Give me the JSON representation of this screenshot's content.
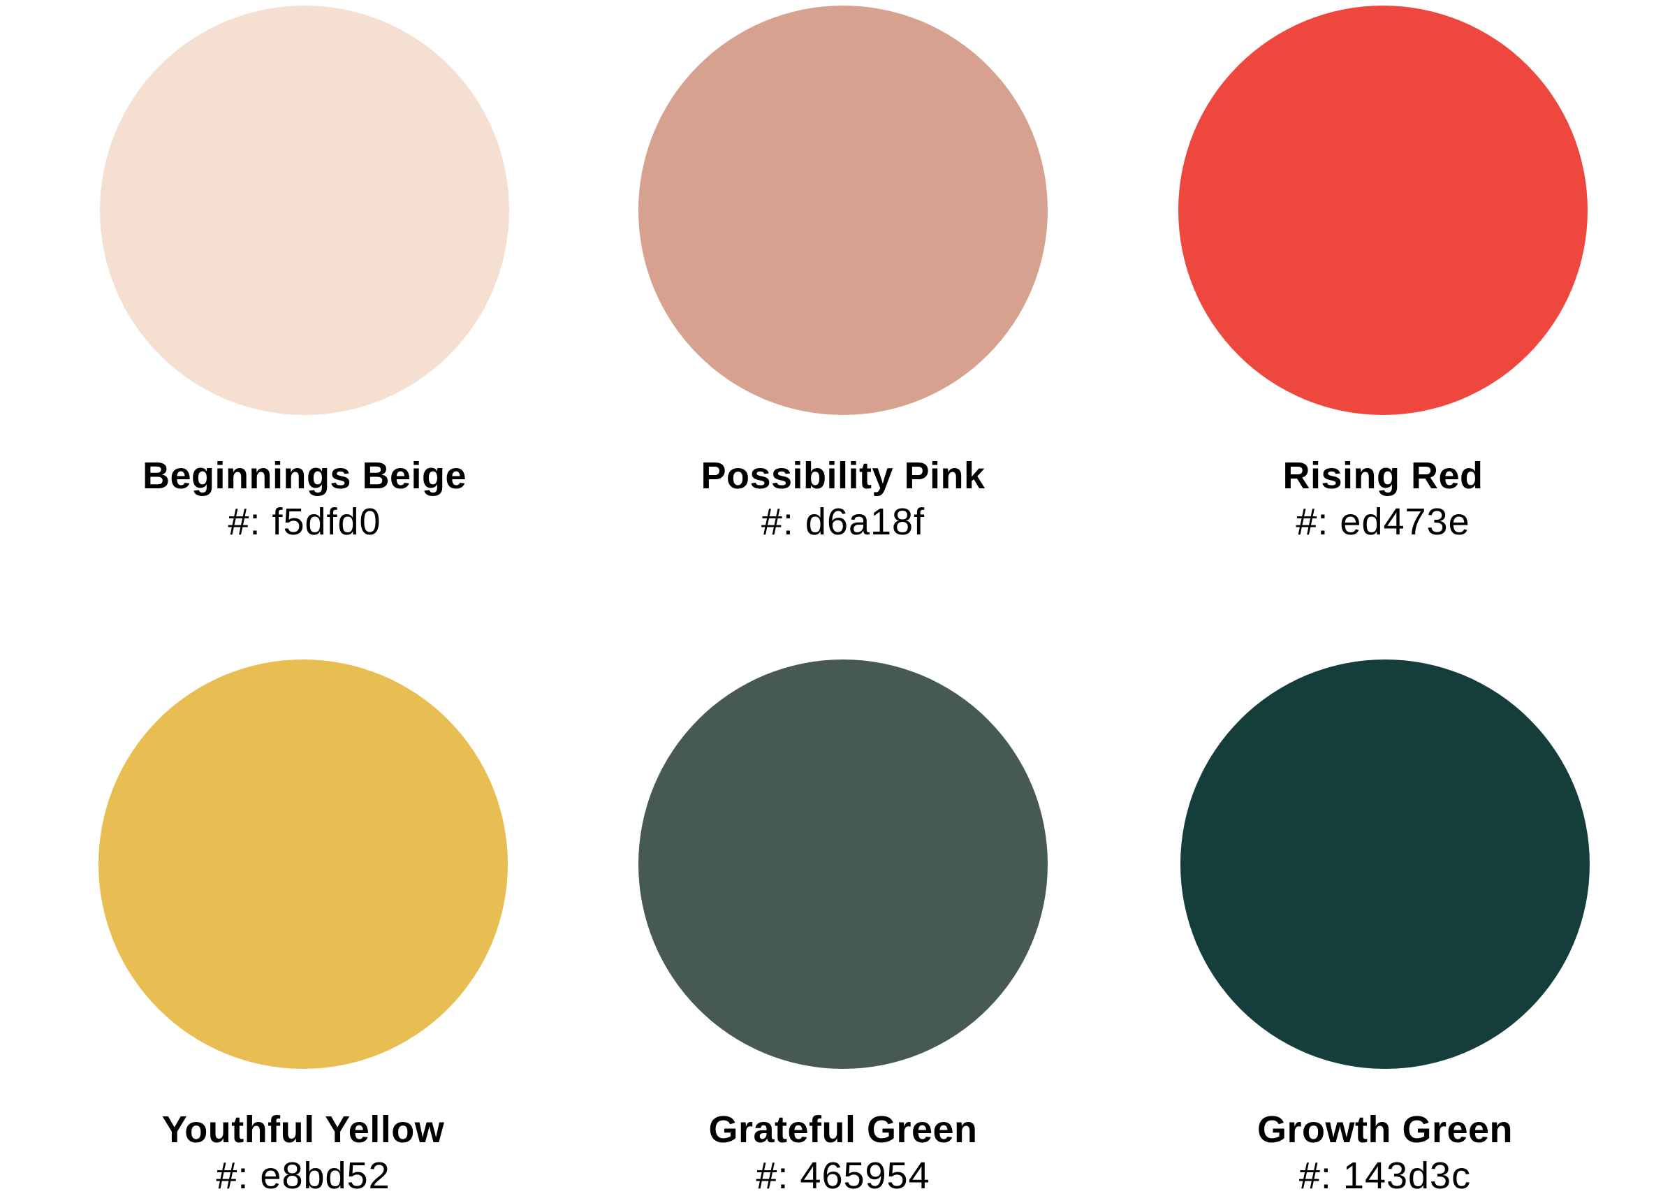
{
  "swatches": [
    {
      "name": "Beginnings Beige",
      "hex_label": "#: f5dfd0",
      "color": "#f5dfd0"
    },
    {
      "name": "Possibility Pink",
      "hex_label": "#: d6a18f",
      "color": "#d6a18f"
    },
    {
      "name": "Rising Red",
      "hex_label": "#: ed473e",
      "color": "#ed473e"
    },
    {
      "name": "Youthful Yellow",
      "hex_label": "#: e8bd52",
      "color": "#e8bd52"
    },
    {
      "name": "Grateful Green",
      "hex_label": "#: 465954",
      "color": "#465954"
    },
    {
      "name": "Growth Green",
      "hex_label": "#: 143d3c",
      "color": "#143d3c"
    }
  ]
}
